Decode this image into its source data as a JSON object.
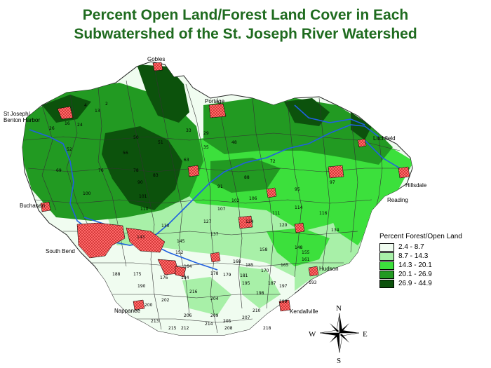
{
  "title": {
    "line1": "Percent Open Land/Forest Land  Cover in Each",
    "line2": "Subwatershed of the St. Joseph River Watershed"
  },
  "legend": {
    "title": "Percent Forest/Open Land",
    "classes": [
      {
        "label": "2.4 - 8.7",
        "color": "#f0fcf0"
      },
      {
        "label": "8.7 - 14.3",
        "color": "#a8f0a8"
      },
      {
        "label": "14.3 - 20.1",
        "color": "#3ce03c"
      },
      {
        "label": "20.1 - 26.9",
        "color": "#229a22"
      },
      {
        "label": "26.9 - 44.9",
        "color": "#0c520c"
      }
    ]
  },
  "cities": {
    "gobles": "Gobles",
    "st_joseph": "St Joseph/",
    "benton_harbor": "Benton Harbor",
    "portage": "Portage",
    "litchfield": "Litchfield",
    "hillsdale": "Hillsdale",
    "reading": "Reading",
    "buchanan": "Buchanan",
    "south_bend": "South Bend",
    "hudson": "Hudson",
    "nappanee": "Nappanee",
    "kendallville": "Kendallville"
  },
  "compass": {
    "n": "N",
    "s": "S",
    "e": "E",
    "w": "W"
  },
  "subwatershed_ids": [
    "4",
    "13",
    "2",
    "16",
    "26",
    "24",
    "29",
    "33",
    "35",
    "48",
    "50",
    "51",
    "52",
    "56",
    "63",
    "69",
    "72",
    "76",
    "78",
    "83",
    "88",
    "90",
    "91",
    "95",
    "97",
    "100",
    "101",
    "102",
    "106",
    "107",
    "110",
    "111",
    "114",
    "116",
    "120",
    "124",
    "127",
    "130",
    "134",
    "137",
    "143",
    "145",
    "148",
    "152",
    "155",
    "158",
    "161",
    "164",
    "165",
    "168",
    "170",
    "175",
    "176",
    "178",
    "179",
    "181",
    "184",
    "185",
    "187",
    "188",
    "190",
    "193",
    "195",
    "197",
    "198",
    "199",
    "200",
    "202",
    "204",
    "205",
    "206",
    "207",
    "208",
    "209",
    "210",
    "212",
    "213",
    "214",
    "215",
    "216",
    "218"
  ],
  "symbology": {
    "water_color": "#2060e0",
    "urban_fill": "#ff6060",
    "urban_dot": "#c00000",
    "boundary_color": "#2a2a2a"
  }
}
